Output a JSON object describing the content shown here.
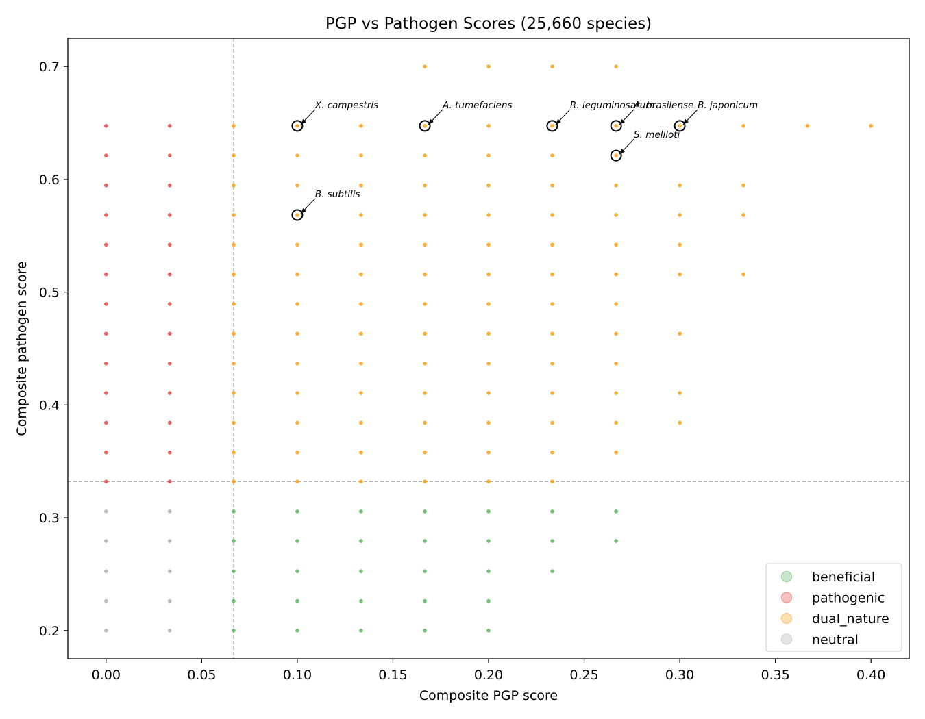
{
  "chart_data": {
    "type": "scatter",
    "title": "PGP vs Pathogen Scores (25,660 species)",
    "xlabel": "Composite PGP score",
    "ylabel": "Composite pathogen score",
    "xlim": [
      -0.02,
      0.42
    ],
    "ylim": [
      0.175,
      0.725
    ],
    "xticks": [
      0.0,
      0.05,
      0.1,
      0.15,
      0.2,
      0.25,
      0.3,
      0.35,
      0.4
    ],
    "xtick_labels": [
      "0.00",
      "0.05",
      "0.10",
      "0.15",
      "0.20",
      "0.25",
      "0.30",
      "0.35",
      "0.40"
    ],
    "yticks": [
      0.2,
      0.3,
      0.4,
      0.5,
      0.6,
      0.7
    ],
    "ytick_labels": [
      "0.2",
      "0.3",
      "0.4",
      "0.5",
      "0.6",
      "0.7"
    ],
    "threshold_lines": {
      "x": 0.0667,
      "y": 0.3321
    },
    "grid": false,
    "legend_position": "lower-right",
    "colors": {
      "beneficial": "#4caf50",
      "pathogenic": "#e53935",
      "dual_nature": "#ff9800",
      "neutral": "#aaaaaa"
    },
    "series": [
      {
        "name": "beneficial",
        "color": "#4caf50",
        "points": [
          [
            0.0667,
            0.3056
          ],
          [
            0.0667,
            0.2794
          ],
          [
            0.0667,
            0.2526
          ],
          [
            0.0667,
            0.2262
          ],
          [
            0.0667,
            0.2
          ],
          [
            0.1,
            0.3056
          ],
          [
            0.1,
            0.2794
          ],
          [
            0.1,
            0.2526
          ],
          [
            0.1,
            0.2262
          ],
          [
            0.1,
            0.2
          ],
          [
            0.1333,
            0.3056
          ],
          [
            0.1333,
            0.2794
          ],
          [
            0.1333,
            0.2526
          ],
          [
            0.1333,
            0.2262
          ],
          [
            0.1333,
            0.2
          ],
          [
            0.1667,
            0.3056
          ],
          [
            0.1667,
            0.2794
          ],
          [
            0.1667,
            0.2526
          ],
          [
            0.1667,
            0.2262
          ],
          [
            0.1667,
            0.2
          ],
          [
            0.2,
            0.3056
          ],
          [
            0.2,
            0.2794
          ],
          [
            0.2,
            0.2526
          ],
          [
            0.2,
            0.2262
          ],
          [
            0.2,
            0.2
          ],
          [
            0.2333,
            0.3056
          ],
          [
            0.2333,
            0.2794
          ],
          [
            0.2333,
            0.2526
          ],
          [
            0.2667,
            0.3056
          ],
          [
            0.2667,
            0.2794
          ]
        ]
      },
      {
        "name": "pathogenic",
        "color": "#e53935",
        "points": [
          [
            0.0,
            0.6474
          ],
          [
            0.0,
            0.6211
          ],
          [
            0.0,
            0.5947
          ],
          [
            0.0,
            0.5684
          ],
          [
            0.0,
            0.5421
          ],
          [
            0.0,
            0.5158
          ],
          [
            0.0,
            0.4895
          ],
          [
            0.0,
            0.4632
          ],
          [
            0.0,
            0.4368
          ],
          [
            0.0,
            0.4105
          ],
          [
            0.0,
            0.3842
          ],
          [
            0.0,
            0.3579
          ],
          [
            0.0,
            0.3321
          ],
          [
            0.0333,
            0.6474
          ],
          [
            0.0333,
            0.6211
          ],
          [
            0.0333,
            0.5947
          ],
          [
            0.0333,
            0.5684
          ],
          [
            0.0333,
            0.5421
          ],
          [
            0.0333,
            0.5158
          ],
          [
            0.0333,
            0.4895
          ],
          [
            0.0333,
            0.4632
          ],
          [
            0.0333,
            0.4368
          ],
          [
            0.0333,
            0.4105
          ],
          [
            0.0333,
            0.3842
          ],
          [
            0.0333,
            0.3579
          ],
          [
            0.0333,
            0.3321
          ]
        ]
      },
      {
        "name": "dual_nature",
        "color": "#ff9800",
        "points": [
          [
            0.0667,
            0.6474
          ],
          [
            0.0667,
            0.6211
          ],
          [
            0.0667,
            0.5947
          ],
          [
            0.0667,
            0.5684
          ],
          [
            0.0667,
            0.5421
          ],
          [
            0.0667,
            0.5158
          ],
          [
            0.0667,
            0.4895
          ],
          [
            0.0667,
            0.4632
          ],
          [
            0.0667,
            0.4368
          ],
          [
            0.0667,
            0.4105
          ],
          [
            0.0667,
            0.3842
          ],
          [
            0.0667,
            0.3579
          ],
          [
            0.0667,
            0.3321
          ],
          [
            0.1,
            0.6474
          ],
          [
            0.1,
            0.6211
          ],
          [
            0.1,
            0.5947
          ],
          [
            0.1,
            0.5684
          ],
          [
            0.1,
            0.5421
          ],
          [
            0.1,
            0.5158
          ],
          [
            0.1,
            0.4895
          ],
          [
            0.1,
            0.4632
          ],
          [
            0.1,
            0.4368
          ],
          [
            0.1,
            0.4105
          ],
          [
            0.1,
            0.3842
          ],
          [
            0.1,
            0.3579
          ],
          [
            0.1,
            0.3321
          ],
          [
            0.1333,
            0.6474
          ],
          [
            0.1333,
            0.6211
          ],
          [
            0.1333,
            0.5947
          ],
          [
            0.1333,
            0.5684
          ],
          [
            0.1333,
            0.5421
          ],
          [
            0.1333,
            0.5158
          ],
          [
            0.1333,
            0.4895
          ],
          [
            0.1333,
            0.4632
          ],
          [
            0.1333,
            0.4368
          ],
          [
            0.1333,
            0.4105
          ],
          [
            0.1333,
            0.3842
          ],
          [
            0.1333,
            0.3579
          ],
          [
            0.1333,
            0.3321
          ],
          [
            0.1667,
            0.6474
          ],
          [
            0.1667,
            0.6211
          ],
          [
            0.1667,
            0.5947
          ],
          [
            0.1667,
            0.5684
          ],
          [
            0.1667,
            0.5421
          ],
          [
            0.1667,
            0.5158
          ],
          [
            0.1667,
            0.4895
          ],
          [
            0.1667,
            0.4632
          ],
          [
            0.1667,
            0.4368
          ],
          [
            0.1667,
            0.4105
          ],
          [
            0.1667,
            0.3842
          ],
          [
            0.1667,
            0.3579
          ],
          [
            0.1667,
            0.3321
          ],
          [
            0.1667,
            0.7
          ],
          [
            0.2,
            0.6474
          ],
          [
            0.2,
            0.6211
          ],
          [
            0.2,
            0.5947
          ],
          [
            0.2,
            0.5684
          ],
          [
            0.2,
            0.5421
          ],
          [
            0.2,
            0.5158
          ],
          [
            0.2,
            0.4895
          ],
          [
            0.2,
            0.4632
          ],
          [
            0.2,
            0.4368
          ],
          [
            0.2,
            0.4105
          ],
          [
            0.2,
            0.3842
          ],
          [
            0.2,
            0.3579
          ],
          [
            0.2,
            0.3321
          ],
          [
            0.2,
            0.7
          ],
          [
            0.2333,
            0.6474
          ],
          [
            0.2333,
            0.6211
          ],
          [
            0.2333,
            0.5947
          ],
          [
            0.2333,
            0.5684
          ],
          [
            0.2333,
            0.5421
          ],
          [
            0.2333,
            0.5158
          ],
          [
            0.2333,
            0.4895
          ],
          [
            0.2333,
            0.4632
          ],
          [
            0.2333,
            0.4368
          ],
          [
            0.2333,
            0.4105
          ],
          [
            0.2333,
            0.3842
          ],
          [
            0.2333,
            0.3579
          ],
          [
            0.2333,
            0.3321
          ],
          [
            0.2333,
            0.7
          ],
          [
            0.2667,
            0.6474
          ],
          [
            0.2667,
            0.6211
          ],
          [
            0.2667,
            0.5947
          ],
          [
            0.2667,
            0.5684
          ],
          [
            0.2667,
            0.5421
          ],
          [
            0.2667,
            0.5158
          ],
          [
            0.2667,
            0.4895
          ],
          [
            0.2667,
            0.4632
          ],
          [
            0.2667,
            0.4368
          ],
          [
            0.2667,
            0.4105
          ],
          [
            0.2667,
            0.3842
          ],
          [
            0.2667,
            0.3579
          ],
          [
            0.2667,
            0.7
          ],
          [
            0.3,
            0.6474
          ],
          [
            0.3,
            0.5947
          ],
          [
            0.3,
            0.5684
          ],
          [
            0.3,
            0.5421
          ],
          [
            0.3,
            0.5158
          ],
          [
            0.3,
            0.4632
          ],
          [
            0.3,
            0.4105
          ],
          [
            0.3,
            0.3842
          ],
          [
            0.3333,
            0.6474
          ],
          [
            0.3333,
            0.5947
          ],
          [
            0.3333,
            0.5684
          ],
          [
            0.3333,
            0.5158
          ],
          [
            0.3667,
            0.6474
          ],
          [
            0.4,
            0.6474
          ]
        ]
      },
      {
        "name": "neutral",
        "color": "#aaaaaa",
        "points": [
          [
            0.0,
            0.3056
          ],
          [
            0.0,
            0.2794
          ],
          [
            0.0,
            0.2526
          ],
          [
            0.0,
            0.2262
          ],
          [
            0.0,
            0.2
          ],
          [
            0.0333,
            0.3056
          ],
          [
            0.0333,
            0.2794
          ],
          [
            0.0333,
            0.2526
          ],
          [
            0.0333,
            0.2262
          ],
          [
            0.0333,
            0.2
          ]
        ]
      }
    ],
    "annotations": [
      {
        "label": "X. campestris",
        "x": 0.1,
        "y": 0.6474
      },
      {
        "label": "A. tumefaciens",
        "x": 0.1667,
        "y": 0.6474
      },
      {
        "label": "R. leguminosarum",
        "x": 0.2333,
        "y": 0.6474
      },
      {
        "label": "A. brasilense",
        "x": 0.2667,
        "y": 0.6474
      },
      {
        "label": "B. japonicum",
        "x": 0.3,
        "y": 0.6474
      },
      {
        "label": "S. meliloti",
        "x": 0.2667,
        "y": 0.6211
      },
      {
        "label": "B. subtilis",
        "x": 0.1,
        "y": 0.5684
      }
    ]
  }
}
